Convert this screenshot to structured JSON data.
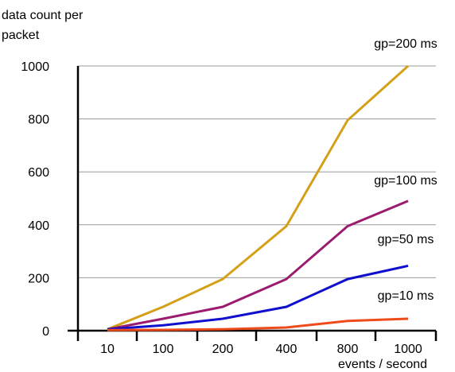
{
  "chart_data": {
    "type": "line",
    "ylabel": "data count per packet",
    "xlabel": "events / second",
    "categories": [
      "10",
      "100",
      "200",
      "400",
      "800",
      "1000"
    ],
    "yticks": [
      "0",
      "200",
      "400",
      "600",
      "800",
      "1000"
    ],
    "ylim": [
      0,
      1000
    ],
    "grid": true,
    "series": [
      {
        "name": "gp=200 ms",
        "color": "#D4A017",
        "values": [
          5,
          90,
          195,
          395,
          795,
          1000
        ]
      },
      {
        "name": "gp=100 ms",
        "color": "#9B1B6F",
        "values": [
          5,
          45,
          90,
          195,
          395,
          490
        ]
      },
      {
        "name": "gp=50 ms",
        "color": "#1010CC",
        "values": [
          5,
          20,
          45,
          90,
          195,
          245
        ]
      },
      {
        "name": "gp=10 ms",
        "color": "#EE4A1A",
        "values": [
          2,
          3,
          5,
          12,
          37,
          45
        ]
      }
    ]
  }
}
